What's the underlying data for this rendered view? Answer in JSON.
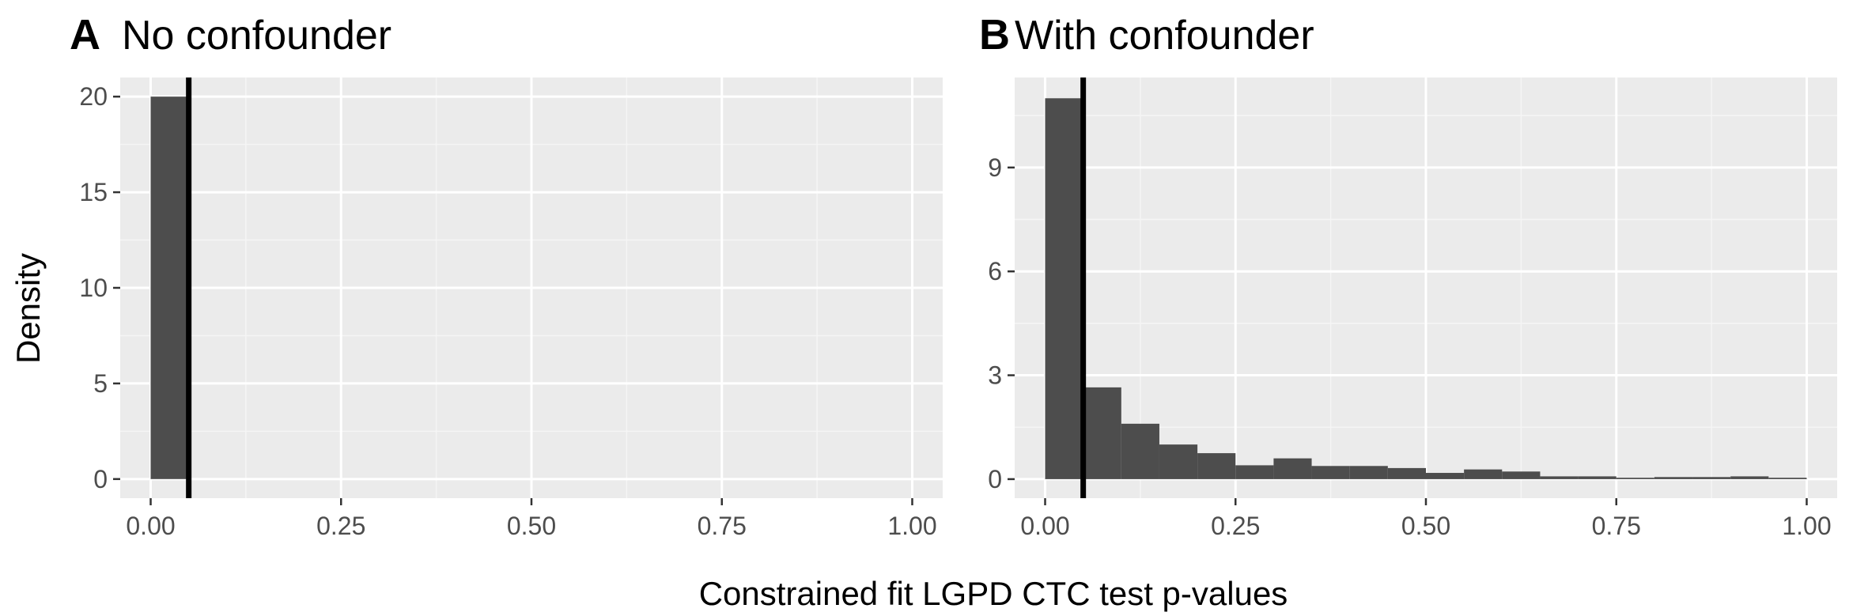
{
  "colors": {
    "panel_bg": "#ebebeb",
    "grid_major": "#ffffff",
    "grid_minor": "#f5f5f5",
    "bar_fill": "#4d4d4d",
    "vline": "#000000",
    "tick_text": "#4d4d4d"
  },
  "labels": {
    "xlabel": "Constrained fit LGPD CTC test p-values",
    "ylabel": "Density"
  },
  "chart_data": [
    {
      "type": "bar",
      "tag": "A",
      "title": "No confounder",
      "xlim": [
        -0.04,
        1.04
      ],
      "ylim": [
        -1,
        21
      ],
      "x_ticks": [
        0,
        0.25,
        0.5,
        0.75,
        1
      ],
      "x_tick_labels": [
        "0.00",
        "0.25",
        "0.50",
        "0.75",
        "1.00"
      ],
      "y_ticks": [
        0,
        5,
        10,
        15,
        20
      ],
      "y_tick_labels": [
        "0",
        "5",
        "10",
        "15",
        "20"
      ],
      "bins": [
        {
          "start": 0.0,
          "end": 0.05,
          "value": 20
        },
        {
          "start": 0.05,
          "end": 0.1,
          "value": 0
        },
        {
          "start": 0.1,
          "end": 0.15,
          "value": 0
        },
        {
          "start": 0.15,
          "end": 0.2,
          "value": 0
        },
        {
          "start": 0.2,
          "end": 0.25,
          "value": 0
        },
        {
          "start": 0.25,
          "end": 0.3,
          "value": 0
        },
        {
          "start": 0.3,
          "end": 0.35,
          "value": 0
        },
        {
          "start": 0.35,
          "end": 0.4,
          "value": 0
        },
        {
          "start": 0.4,
          "end": 0.45,
          "value": 0
        },
        {
          "start": 0.45,
          "end": 0.5,
          "value": 0
        },
        {
          "start": 0.5,
          "end": 0.55,
          "value": 0
        },
        {
          "start": 0.55,
          "end": 0.6,
          "value": 0
        },
        {
          "start": 0.6,
          "end": 0.65,
          "value": 0
        },
        {
          "start": 0.65,
          "end": 0.7,
          "value": 0
        },
        {
          "start": 0.7,
          "end": 0.75,
          "value": 0
        },
        {
          "start": 0.75,
          "end": 0.8,
          "value": 0
        },
        {
          "start": 0.8,
          "end": 0.85,
          "value": 0
        },
        {
          "start": 0.85,
          "end": 0.9,
          "value": 0
        },
        {
          "start": 0.9,
          "end": 0.95,
          "value": 0
        },
        {
          "start": 0.95,
          "end": 1.0,
          "value": 0
        }
      ],
      "vline_x": 0.05
    },
    {
      "type": "bar",
      "tag": "B",
      "title": "With confounder",
      "xlim": [
        -0.04,
        1.04
      ],
      "ylim": [
        -0.55,
        11.6
      ],
      "x_ticks": [
        0,
        0.25,
        0.5,
        0.75,
        1
      ],
      "x_tick_labels": [
        "0.00",
        "0.25",
        "0.50",
        "0.75",
        "1.00"
      ],
      "y_ticks": [
        0,
        3,
        6,
        9
      ],
      "y_tick_labels": [
        "0",
        "3",
        "6",
        "9"
      ],
      "bins": [
        {
          "start": 0.0,
          "end": 0.05,
          "value": 11.0
        },
        {
          "start": 0.05,
          "end": 0.1,
          "value": 2.65
        },
        {
          "start": 0.1,
          "end": 0.15,
          "value": 1.6
        },
        {
          "start": 0.15,
          "end": 0.2,
          "value": 1.0
        },
        {
          "start": 0.2,
          "end": 0.25,
          "value": 0.75
        },
        {
          "start": 0.25,
          "end": 0.3,
          "value": 0.4
        },
        {
          "start": 0.3,
          "end": 0.35,
          "value": 0.6
        },
        {
          "start": 0.35,
          "end": 0.4,
          "value": 0.38
        },
        {
          "start": 0.4,
          "end": 0.45,
          "value": 0.38
        },
        {
          "start": 0.45,
          "end": 0.5,
          "value": 0.32
        },
        {
          "start": 0.5,
          "end": 0.55,
          "value": 0.18
        },
        {
          "start": 0.55,
          "end": 0.6,
          "value": 0.28
        },
        {
          "start": 0.6,
          "end": 0.65,
          "value": 0.22
        },
        {
          "start": 0.65,
          "end": 0.7,
          "value": 0.08
        },
        {
          "start": 0.7,
          "end": 0.75,
          "value": 0.08
        },
        {
          "start": 0.75,
          "end": 0.8,
          "value": 0.04
        },
        {
          "start": 0.8,
          "end": 0.85,
          "value": 0.06
        },
        {
          "start": 0.85,
          "end": 0.9,
          "value": 0.06
        },
        {
          "start": 0.9,
          "end": 0.95,
          "value": 0.08
        },
        {
          "start": 0.95,
          "end": 1.0,
          "value": 0.04
        }
      ],
      "vline_x": 0.05
    }
  ]
}
